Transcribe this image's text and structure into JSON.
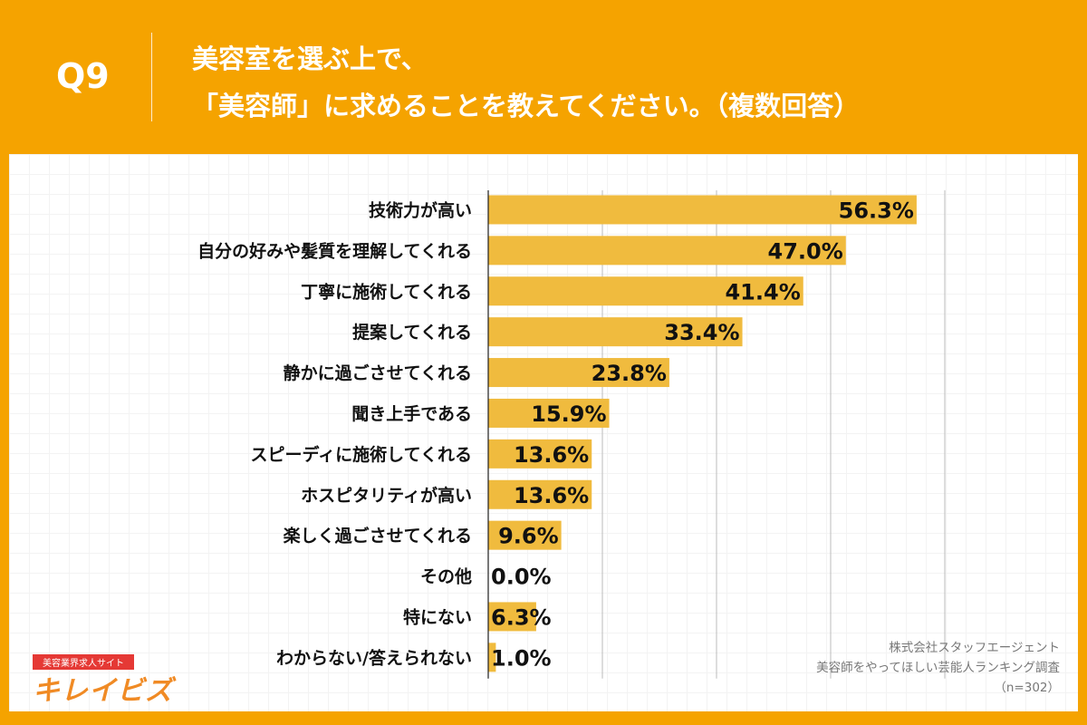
{
  "header": {
    "question_no": "Q9",
    "title_line1": "美容室を選ぶ上で、",
    "title_line2": "「美容師」に求めることを教えてください。（複数回答）"
  },
  "colors": {
    "background": "#F5A300",
    "bar": "#F0BB3E",
    "text": "#111111"
  },
  "chart_data": {
    "type": "bar",
    "orientation": "horizontal",
    "categories": [
      "技術力が高い",
      "自分の好みや髪質を理解してくれる",
      "丁寧に施術してくれる",
      "提案してくれる",
      "静かに過ごさせてくれる",
      "聞き上手である",
      "スピーディに施術してくれる",
      "ホスピタリティが高い",
      "楽しく過ごさせてくれる",
      "その他",
      "特にない",
      "わからない/答えられない"
    ],
    "values": [
      56.3,
      47.0,
      41.4,
      33.4,
      23.8,
      15.9,
      13.6,
      13.6,
      9.6,
      0.0,
      6.3,
      1.0
    ],
    "labels": [
      "56.3%",
      "47.0%",
      "41.4%",
      "33.4%",
      "23.8%",
      "15.9%",
      "13.6%",
      "13.6%",
      "9.6%",
      "0.0%",
      "6.3%",
      "1.0%"
    ],
    "xlim": [
      0,
      60
    ],
    "grid_step": 15,
    "grid": true
  },
  "credit": {
    "company": "株式会社スタッフエージェント",
    "survey": "美容師をやってほしい芸能人ランキング調査",
    "sample": "（n=302）"
  },
  "logo": {
    "tagline": "美容業界求人サイト",
    "name": "キレイビズ"
  }
}
